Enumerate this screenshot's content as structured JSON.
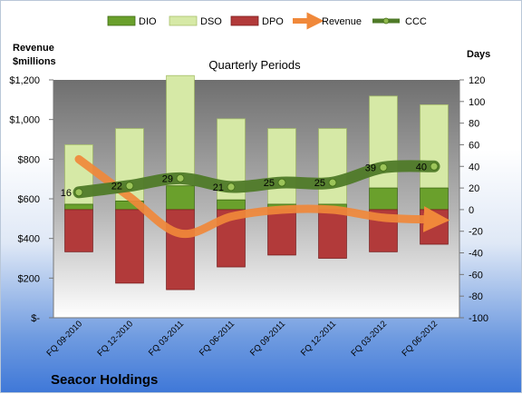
{
  "chart_data": {
    "type": "bar",
    "title": "Quarterly Periods",
    "company": "Seacor Holdings",
    "left_axis_label_line1": "Revenue",
    "left_axis_label_line2": "$millions",
    "right_axis_label": "Days",
    "left_ylim": [
      0,
      1200
    ],
    "right_ylim": [
      -100,
      120
    ],
    "left_ticks": [
      "$-",
      "$200",
      "$400",
      "$600",
      "$800",
      "$1,000",
      "$1,200"
    ],
    "right_ticks": [
      "-100",
      "-80",
      "-60",
      "-40",
      "-20",
      "0",
      "20",
      "40",
      "60",
      "80",
      "100",
      "120"
    ],
    "categories": [
      "FQ 09-2010",
      "FQ 12-2010",
      "FQ 03-2011",
      "FQ 06-2011",
      "FQ 09-2011",
      "FQ 12-2011",
      "FQ 03-2012",
      "FQ 06-2012"
    ],
    "legend": [
      "DIO",
      "DSO",
      "DPO",
      "Revenue",
      "CCC"
    ],
    "legend_position": "top",
    "grid": false,
    "series": [
      {
        "name": "DIO",
        "color": "#6aa02c",
        "values": [
          5,
          8,
          22,
          9,
          5,
          5,
          20,
          20
        ]
      },
      {
        "name": "DSO",
        "color": "#d6e9a6",
        "values": [
          55,
          67,
          102,
          75,
          70,
          70,
          85,
          77
        ]
      },
      {
        "name": "DPO",
        "color": "#b23a3a",
        "values": [
          -39,
          -68,
          -74,
          -53,
          -42,
          -45,
          -39,
          -32
        ]
      },
      {
        "name": "Revenue",
        "color": "#f0883a",
        "values": [
          800,
          610,
          425,
          510,
          545,
          545,
          505,
          495
        ]
      },
      {
        "name": "CCC",
        "color": "#4f7a28",
        "values": [
          16,
          22,
          29,
          21,
          25,
          25,
          39,
          40
        ]
      }
    ],
    "ccc_labels": [
      "16",
      "22",
      "29",
      "21",
      "25",
      "25",
      "39",
      "40"
    ]
  }
}
